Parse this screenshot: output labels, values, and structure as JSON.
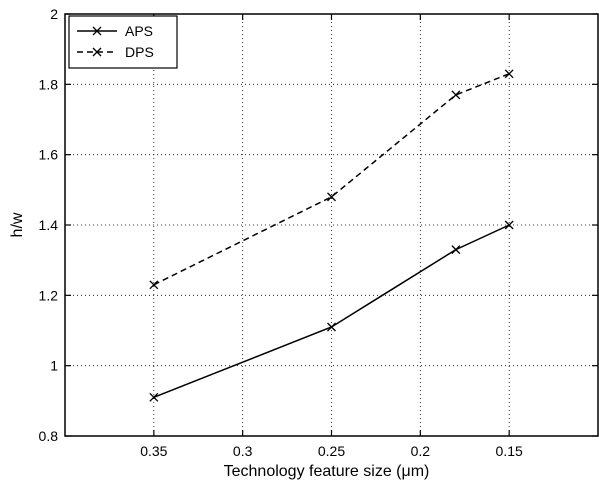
{
  "chart_data": {
    "type": "line",
    "title": "",
    "xlabel": "Technology feature size (μm)",
    "ylabel": "h/w",
    "x_axis": {
      "range": [
        0.4,
        0.1
      ],
      "reversed": true,
      "ticks": [
        0.35,
        0.3,
        0.25,
        0.2,
        0.15
      ],
      "tick_labels": [
        "0.35",
        "0.3",
        "0.25",
        "0.2",
        "0.15"
      ]
    },
    "y_axis": {
      "range": [
        0.8,
        2.0
      ],
      "ticks": [
        0.8,
        1.0,
        1.2,
        1.4,
        1.6,
        1.8,
        2.0
      ],
      "tick_labels": [
        "0.8",
        "1",
        "1.2",
        "1.4",
        "1.6",
        "1.8",
        "2"
      ]
    },
    "grid": true,
    "grid_style": "dotted",
    "legend": {
      "placement": "top-left",
      "entries": [
        "APS",
        "DPS"
      ]
    },
    "series": [
      {
        "name": "APS",
        "style": "solid",
        "marker": "x",
        "color": "#000000",
        "x": [
          0.35,
          0.25,
          0.18,
          0.15
        ],
        "values": [
          0.91,
          1.11,
          1.33,
          1.4
        ]
      },
      {
        "name": "DPS",
        "style": "dashed",
        "marker": "x",
        "color": "#000000",
        "x": [
          0.35,
          0.25,
          0.18,
          0.15
        ],
        "values": [
          1.23,
          1.48,
          1.77,
          1.83
        ]
      }
    ]
  }
}
